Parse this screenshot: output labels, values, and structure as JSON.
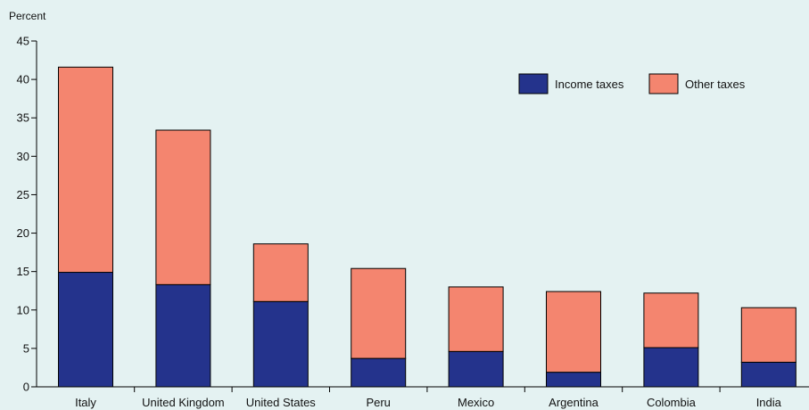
{
  "chart_data": {
    "type": "bar",
    "stacked": true,
    "title": "",
    "xlabel": "",
    "ylabel": "Percent",
    "ylim": [
      0,
      45
    ],
    "yticks": [
      0,
      5,
      10,
      15,
      20,
      25,
      30,
      35,
      40,
      45
    ],
    "grid": false,
    "legend_position": "top-right",
    "categories": [
      "Italy",
      "United Kingdom",
      "United States",
      "Peru",
      "Mexico",
      "Argentina",
      "Colombia",
      "India"
    ],
    "series": [
      {
        "name": "Income taxes",
        "color": "#24338c",
        "values": [
          14.9,
          13.3,
          11.1,
          3.7,
          4.6,
          1.9,
          5.1,
          3.2
        ]
      },
      {
        "name": "Other taxes",
        "color": "#f4856f",
        "values": [
          26.7,
          20.1,
          7.5,
          11.7,
          8.4,
          10.5,
          7.1,
          7.1
        ]
      }
    ]
  }
}
